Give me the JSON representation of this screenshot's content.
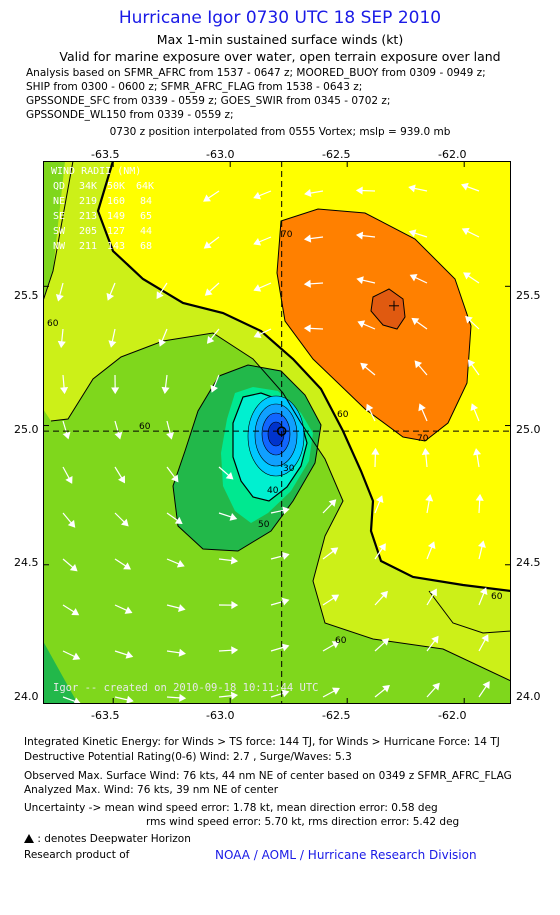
{
  "title": "Hurricane Igor 0730 UTC 18 SEP 2010",
  "subtitle1": "Max 1-min sustained surface winds (kt)",
  "subtitle2": "Valid for marine exposure over water, open terrain exposure over land",
  "sources": [
    "Analysis based on SFMR_AFRC from 1537 - 0647 z; MOORED_BUOY from 0309 - 0949 z;",
    "SHIP from 0300 - 0600 z; SFMR_AFRC_FLAG from 1538 - 0643 z;",
    "GPSSONDE_SFC from 0339 - 0559 z; GOES_SWIR from 0345 - 0702 z;",
    "GPSSONDE_WL150 from 0339 - 0559 z;"
  ],
  "position_note": "0730 z position interpolated from 0555 Vortex; mslp = 939.0 mb",
  "map": {
    "lon_ticks": [
      "-63.5",
      "-63.0",
      "-62.5",
      "-62.0"
    ],
    "lat_ticks": [
      "25.5",
      "25.0",
      "24.5",
      "24.0"
    ],
    "lon_values": [
      -63.5,
      -63.0,
      -62.5,
      -62.0
    ],
    "lat_values": [
      25.5,
      25.0,
      24.5,
      24.0
    ],
    "lon_range": [
      -63.8,
      -61.8
    ],
    "lat_range": [
      24.0,
      25.95
    ],
    "center": {
      "lon": -62.78,
      "lat": 24.98
    },
    "max_wind_marker": {
      "lon": -62.3,
      "lat": 25.43
    },
    "contour_labels": [
      "70",
      "60",
      "60",
      "60",
      "70",
      "40",
      "30",
      "50",
      "60",
      "60"
    ],
    "wind_radii": {
      "title": "WIND RADII (NM)",
      "header": [
        "QD",
        "34K",
        "50K",
        "64K"
      ],
      "rows": [
        [
          "NE",
          "219",
          "160",
          "84"
        ],
        [
          "SE",
          "213",
          "149",
          "65"
        ],
        [
          "SW",
          "205",
          "127",
          "44"
        ],
        [
          "NW",
          "211",
          "143",
          "68"
        ]
      ]
    },
    "credit": "Igor -- created on 2010-09-18 10:11:44 UTC",
    "colors": {
      "band_40_50": "#22b84a",
      "band_50_60": "#7fd71c",
      "band_60_70": "#ccf018",
      "band_70_80": "#ffff00",
      "band_80_plus": "#ff8000",
      "band_50_inner": "#00e890",
      "eye_core": "#1166ff"
    }
  },
  "stats": {
    "line1": "Integrated Kinetic Energy:  for Winds > TS force: 144 TJ,  for Winds > Hurricane Force: 14 TJ",
    "line2": "Destructive Potential Rating(0-6)   Wind: 2.7 , Surge/Waves: 5.3",
    "line3": "Observed Max. Surface Wind: 76 kts, 44 nm NE of center based on 0349 z SFMR_AFRC_FLAG",
    "line4": "Analyzed Max. Wind: 76 kts, 39 nm NE of center",
    "line5": "Uncertainty -> mean wind speed error: 1.78 kt,   mean direction error: 0.58 deg",
    "line6": "rms wind speed error: 5.70 kt,   rms direction error: 5.42 deg",
    "legend": ": denotes Deepwater Horizon",
    "research": "Research product of",
    "org": "NOAA / AOML / Hurricane Research Division"
  }
}
